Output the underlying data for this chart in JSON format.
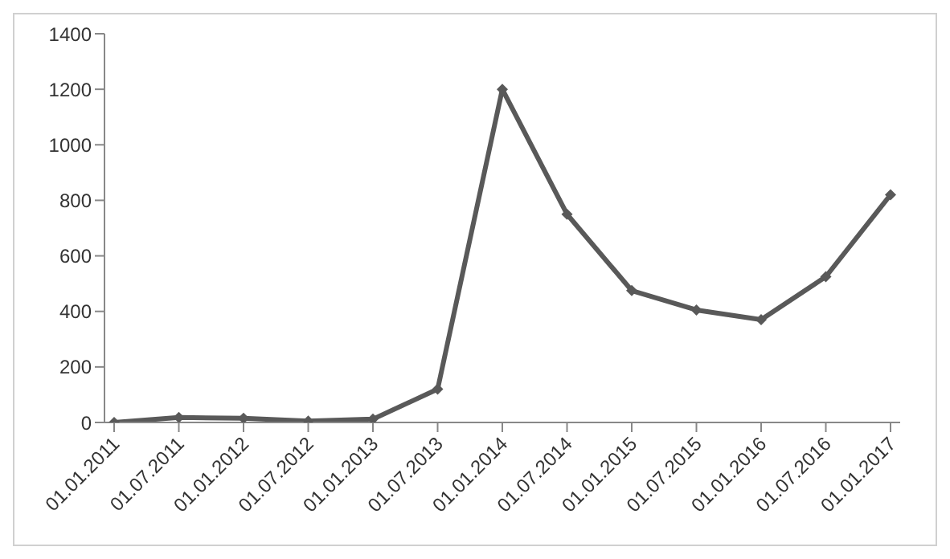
{
  "chart_data": {
    "type": "line",
    "categories": [
      "01.01.2011",
      "01.07.2011",
      "01.01.2012",
      "01.07.2012",
      "01.01.2013",
      "01.07.2013",
      "01.01.2014",
      "01.07.2014",
      "01.01.2015",
      "01.07.2015",
      "01.01.2016",
      "01.07.2016",
      "01.01.2017"
    ],
    "series": [
      {
        "color": "#595959",
        "values": [
          0,
          18,
          15,
          5,
          12,
          120,
          1200,
          750,
          475,
          405,
          370,
          525,
          820
        ]
      }
    ],
    "ylim": [
      0,
      1400
    ],
    "yticks": [
      0,
      200,
      400,
      600,
      800,
      1000,
      1200,
      1400
    ],
    "grid": false,
    "legend": false,
    "marker": "diamond",
    "line_style": "solid"
  }
}
